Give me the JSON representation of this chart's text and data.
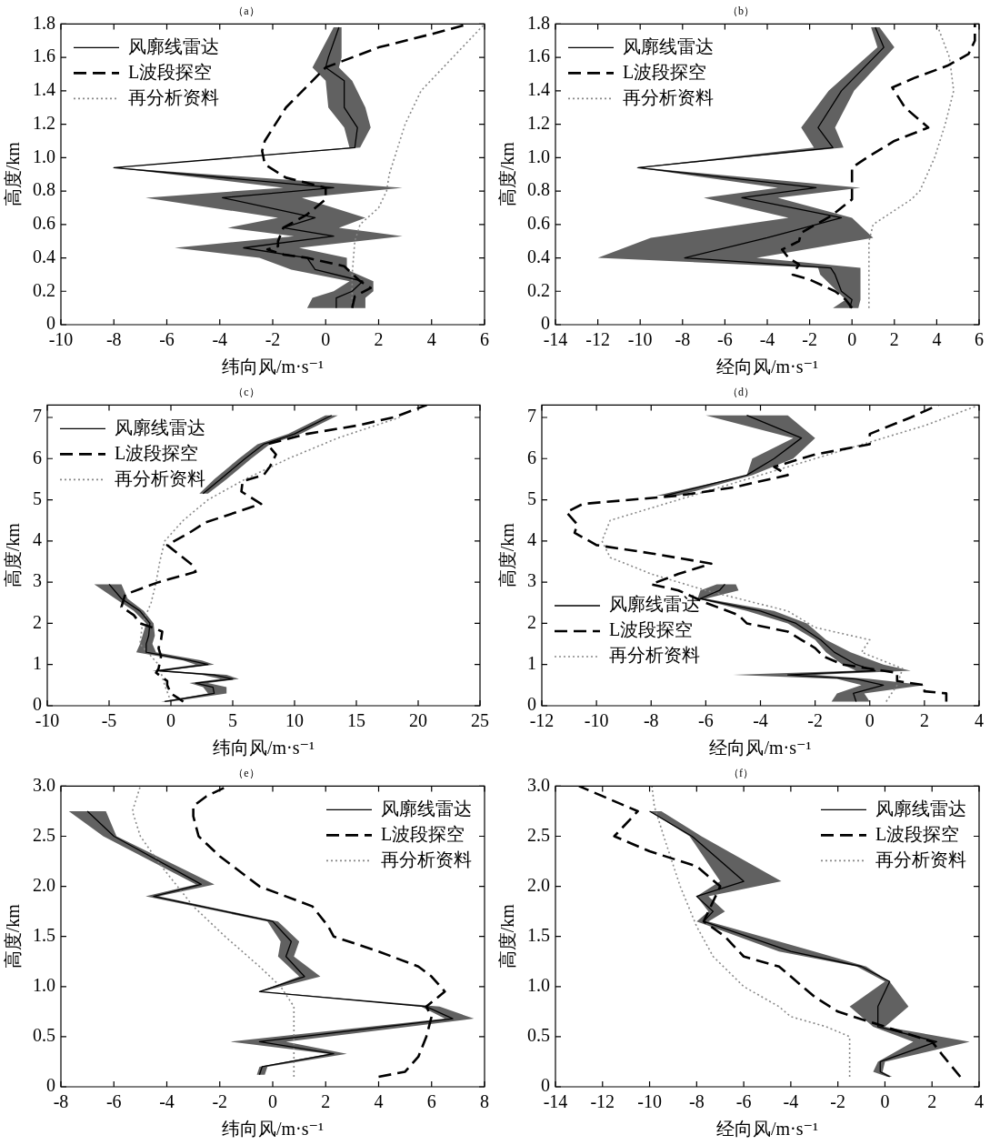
{
  "chart_data": [
    {
      "type": "line",
      "orientation": "horizontal",
      "title": "（a）",
      "xlabel": "纬向风/m·s⁻¹",
      "ylabel": "高度/km",
      "xlim": [
        -10,
        6
      ],
      "xticks": [
        -10,
        -8,
        -6,
        -4,
        -2,
        0,
        2,
        4,
        6
      ],
      "ylim": [
        0,
        1.8
      ],
      "yticks": [
        0,
        0.2,
        0.4,
        0.6,
        0.8,
        {
          "value": 1,
          "label": "1.0"
        },
        1.2,
        1.4,
        1.6,
        1.8
      ],
      "legend": "top left",
      "series": [
        {
          "name": "风廓线雷达",
          "color": "#000000",
          "line_style": "solid",
          "x": [
            0.1,
            0.16,
            0.2,
            0.26,
            0.33,
            0.4,
            0.46,
            0.53,
            0.58,
            0.64,
            0.76,
            0.82,
            0.94,
            1.06,
            1.18,
            1.3,
            1.46,
            1.54,
            1.6,
            1.78
          ],
          "values": [
            0.4,
            0.4,
            1.0,
            1.4,
            -0.4,
            -0.7,
            -3.1,
            0.3,
            -1.6,
            -0.4,
            -3.9,
            0.3,
            -8.0,
            1.1,
            1.2,
            0.7,
            0.7,
            0,
            0.1,
            0.5
          ],
          "lower": [
            -0.7,
            -0.5,
            0.3,
            0.9,
            -1.3,
            -2.5,
            -5.7,
            -1.2,
            -3.7,
            -1.8,
            -6.8,
            -1.6,
            -8.0,
            0.9,
            0.7,
            0.1,
            0.0,
            -0.5,
            -0.3,
            0.3
          ],
          "upper": [
            1.5,
            1.5,
            1.8,
            1.8,
            0.8,
            0.8,
            -1.0,
            2.9,
            0.5,
            1.5,
            -0.9,
            2.9,
            -8.0,
            1.3,
            1.7,
            1.5,
            1.0,
            0.5,
            0.6,
            0.6
          ]
        },
        {
          "name": "L波段探空",
          "color": "#000000",
          "line_style": "dashed",
          "x": [
            0.1,
            0.17,
            0.22,
            0.26,
            0.35,
            0.4,
            0.42,
            0.45,
            0.47,
            0.5,
            0.58,
            0.66,
            0.75,
            0.82,
            0.88,
            0.96,
            1.04,
            1.1,
            1.3,
            1.46,
            1.54,
            1.6,
            1.66,
            1.74,
            1.8
          ],
          "values": [
            1.0,
            1.1,
            1.7,
            1.3,
            0.7,
            -0.7,
            -1.6,
            -2.2,
            -1.8,
            -1.8,
            -1.6,
            -0.7,
            0,
            0,
            -1.5,
            -2.3,
            -2.4,
            -2.3,
            -1.5,
            -0.5,
            0,
            1.0,
            2.0,
            4.0,
            5.4
          ]
        },
        {
          "name": "再分析资料",
          "color": "#888888",
          "line_style": "dotted",
          "x": [
            0.1,
            0.3,
            0.5,
            0.6,
            0.7,
            0.8,
            0.9,
            1.0,
            1.2,
            1.4,
            1.6,
            1.8
          ],
          "values": [
            1.0,
            1.0,
            1.1,
            1.3,
            2.0,
            2.3,
            2.4,
            2.6,
            3.0,
            3.6,
            4.8,
            6.0
          ]
        }
      ]
    },
    {
      "type": "line",
      "orientation": "horizontal",
      "title": "（b）",
      "xlabel": "经向风/m·s⁻¹",
      "ylabel": "高度/km",
      "xlim": [
        -14,
        6
      ],
      "xticks": [
        -14,
        -12,
        -10,
        -8,
        -6,
        -4,
        -2,
        0,
        2,
        4,
        6
      ],
      "ylim": [
        0,
        1.8
      ],
      "yticks": [
        0,
        0.2,
        0.4,
        0.6,
        0.8,
        {
          "value": 1,
          "label": "1.0"
        },
        1.2,
        1.4,
        1.6,
        1.8
      ],
      "legend": "top left",
      "series": [
        {
          "name": "风廓线雷达",
          "color": "#000000",
          "line_style": "solid",
          "x": [
            0.1,
            0.15,
            0.2,
            0.3,
            0.34,
            0.4,
            0.52,
            0.64,
            0.76,
            0.82,
            0.94,
            1.06,
            1.18,
            1.4,
            1.66,
            1.78
          ],
          "values": [
            -0.1,
            0,
            -0.5,
            -0.8,
            -1.0,
            -7.9,
            -4.0,
            -0.5,
            -5.2,
            -1.7,
            -10.1,
            -0.9,
            -1.6,
            -0.5,
            1.5,
            1.1
          ],
          "lower": [
            -0.9,
            -0.3,
            -0.7,
            -1.5,
            -1.6,
            -12.0,
            -9.5,
            -3.0,
            -7.0,
            -3.5,
            -10.2,
            -1.8,
            -2.4,
            -1.1,
            1.2,
            0.9
          ],
          "upper": [
            0.3,
            0.4,
            0.4,
            0.4,
            0.4,
            -4.5,
            1.0,
            0.0,
            -3.5,
            0.4,
            -10.0,
            -0.4,
            -0.8,
            0.1,
            2.0,
            1.3
          ]
        },
        {
          "name": "L波段探空",
          "color": "#000000",
          "line_style": "dashed",
          "x": [
            0.1,
            0.15,
            0.2,
            0.27,
            0.3,
            0.36,
            0.4,
            0.45,
            0.5,
            0.55,
            0.65,
            0.75,
            0.78,
            0.94,
            1.0,
            1.1,
            1.18,
            1.3,
            1.42,
            1.48,
            1.55,
            1.62,
            1.7,
            1.8
          ],
          "values": [
            0,
            -0.3,
            -0.8,
            -2.0,
            -2.8,
            -2.5,
            -3.0,
            -3.3,
            -2.5,
            -2.4,
            -1.0,
            0,
            0,
            0,
            0.7,
            2.0,
            3.6,
            2.5,
            1.9,
            3.0,
            4.5,
            5.5,
            5.8,
            5.8
          ]
        },
        {
          "name": "再分析资料",
          "color": "#888888",
          "line_style": "dotted",
          "x": [
            0.1,
            0.3,
            0.5,
            0.6,
            0.7,
            0.75,
            0.8,
            1.0,
            1.2,
            1.4,
            1.6,
            1.7,
            1.8
          ],
          "values": [
            0.8,
            0.8,
            0.8,
            1.0,
            2.2,
            2.8,
            3.2,
            3.9,
            4.4,
            4.8,
            4.6,
            4.3,
            4.0
          ]
        }
      ]
    },
    {
      "type": "line",
      "orientation": "horizontal",
      "title": "（c）",
      "xlabel": "纬向风/m·s⁻¹",
      "ylabel": "高度/km",
      "xlim": [
        -10,
        25
      ],
      "xticks": [
        -10,
        -5,
        0,
        5,
        10,
        15,
        20,
        25
      ],
      "ylim": [
        0,
        7.3
      ],
      "yticks": [
        0,
        1,
        2,
        3,
        4,
        5,
        6,
        7
      ],
      "legend": "top left",
      "series": [
        {
          "name": "风廓线雷达",
          "color": "#000000",
          "line_style": "solid",
          "x": [
            0.1,
            0.3,
            0.45,
            0.55,
            0.65,
            0.75,
            0.85,
            1.0,
            1.1,
            1.3,
            1.5,
            1.7,
            2.0,
            2.3,
            2.6,
            2.95,
            4.0,
            5.15,
            5.5,
            6.0,
            6.35,
            6.6,
            7.05
          ],
          "values": [
            -0.5,
            3.5,
            3.4,
            2.0,
            5.0,
            3.5,
            -1.0,
            3.0,
            1.5,
            -2.0,
            -2.0,
            -1.8,
            -1.7,
            -2.5,
            -4.0,
            -5.0,
            null,
            2.6,
            4.0,
            6.0,
            7.5,
            10.0,
            13.0
          ],
          "lower": [
            -0.8,
            3.0,
            2.6,
            1.5,
            4.0,
            2.5,
            -1.5,
            2.0,
            1.0,
            -2.8,
            -2.5,
            -2.3,
            -2.0,
            -3.0,
            -4.5,
            -6.2,
            null,
            2.3,
            3.5,
            5.5,
            7.0,
            9.5,
            12.5
          ],
          "upper": [
            0,
            4.5,
            4.5,
            3.0,
            5.5,
            4.5,
            -0.5,
            3.5,
            2.5,
            -1.2,
            -1.5,
            -1.3,
            -1.4,
            -2.2,
            -3.5,
            -4.0,
            null,
            3.0,
            4.5,
            6.5,
            8.0,
            10.5,
            13.5
          ]
        },
        {
          "name": "L波段探空",
          "color": "#000000",
          "line_style": "dashed",
          "x": [
            0.1,
            0.2,
            0.3,
            0.5,
            0.6,
            0.8,
            0.9,
            1.2,
            1.4,
            1.6,
            1.8,
            1.9,
            2.0,
            2.2,
            2.4,
            2.7,
            3.0,
            3.25,
            3.4,
            3.9,
            4.2,
            4.45,
            4.9,
            5.2,
            5.45,
            5.6,
            5.8,
            6.1,
            6.35,
            6.6,
            6.8,
            7.0,
            7.3
          ],
          "values": [
            1.0,
            0.5,
            0,
            -0.3,
            -0.3,
            -1.2,
            -1.0,
            -0.8,
            -1.0,
            -0.8,
            -0.7,
            -1.5,
            -2.5,
            -3.0,
            -4.0,
            -3.7,
            -1.0,
            2.0,
            1.8,
            -0.3,
            1.5,
            2.8,
            7.3,
            5.7,
            5.8,
            7.5,
            8.0,
            8.5,
            7.8,
            11,
            15,
            18,
            20.7
          ]
        },
        {
          "name": "再分析资料",
          "color": "#888888",
          "line_style": "dotted",
          "x": [
            0.1,
            0.5,
            1.0,
            1.5,
            2.0,
            2.5,
            3.0,
            3.5,
            4.0,
            4.5,
            5.0,
            5.5,
            6.0,
            6.5,
            7.0
          ],
          "values": [
            0,
            -0.5,
            -1.0,
            -2.5,
            -2.3,
            -1.6,
            -1.2,
            -0.9,
            -0.5,
            1.0,
            3.0,
            6.0,
            9.5,
            13.5,
            18.5
          ]
        }
      ]
    },
    {
      "type": "line",
      "orientation": "horizontal",
      "title": "（d）",
      "xlabel": "经向风/m·s⁻¹",
      "ylabel": "高度/km",
      "xlim": [
        -12,
        4
      ],
      "xticks": [
        -12,
        -10,
        -8,
        -6,
        -4,
        -2,
        0,
        2,
        4
      ],
      "ylim": [
        0,
        7.3
      ],
      "yticks": [
        0,
        1,
        2,
        3,
        4,
        5,
        6,
        7
      ],
      "legend": "bottom left",
      "series": [
        {
          "name": "风廓线雷达",
          "color": "#000000",
          "line_style": "solid",
          "x": [
            0.1,
            0.3,
            0.5,
            0.65,
            0.75,
            0.85,
            1.0,
            1.3,
            1.6,
            2.0,
            2.3,
            2.6,
            2.8,
            2.95,
            4.0,
            5.1,
            5.6,
            6.0,
            6.5,
            7.05
          ],
          "values": [
            -0.5,
            -0.6,
            0.5,
            -0.5,
            -3.0,
            0.2,
            -0.5,
            -1.3,
            -1.8,
            -2.7,
            -4.0,
            -6.2,
            -5.5,
            -5.3,
            null,
            -7.5,
            -4.5,
            -3.5,
            -2.5,
            -4.5
          ],
          "lower": [
            -1.4,
            -1.2,
            -0.3,
            -1.2,
            -5.0,
            -0.5,
            -1.0,
            -1.6,
            -2.0,
            -3.0,
            -4.5,
            -6.3,
            -6.2,
            -5.6,
            null,
            -7.8,
            -4.5,
            -4.3,
            -2.8,
            -6.0
          ],
          "upper": [
            0.0,
            -0.2,
            2.0,
            0.0,
            -2.0,
            1.5,
            0.5,
            -0.7,
            -1.6,
            -2.3,
            -3.5,
            -6.0,
            -4.8,
            -4.9,
            null,
            -7.0,
            -4.3,
            -2.8,
            -2.0,
            -3.0
          ]
        },
        {
          "name": "L波段探空",
          "color": "#000000",
          "line_style": "dashed",
          "x": [
            0.1,
            0.3,
            0.35,
            0.5,
            0.6,
            0.8,
            0.9,
            1.0,
            1.2,
            1.4,
            1.6,
            1.8,
            2.0,
            2.2,
            2.5,
            2.8,
            2.95,
            3.2,
            3.45,
            3.7,
            3.9,
            4.2,
            4.4,
            4.7,
            4.9,
            5.1,
            5.3,
            5.6,
            5.8,
            6.1,
            6.35,
            6.6,
            7.0,
            7.3
          ],
          "values": [
            2.8,
            2.8,
            2.0,
            2.0,
            1.0,
            1.0,
            0,
            -1.0,
            -1.7,
            -2.0,
            -2.5,
            -3.0,
            -4.5,
            -4.8,
            -6.0,
            -7.0,
            -8.0,
            -7.0,
            -5.8,
            -8.0,
            -10.0,
            -10.8,
            -10.7,
            -11.1,
            -10.5,
            -7.0,
            -5.0,
            -3.0,
            -3.5,
            -2.0,
            0.0,
            0.0,
            1.5,
            2.5
          ]
        },
        {
          "name": "再分析资料",
          "color": "#888888",
          "line_style": "dotted",
          "x": [
            0.1,
            0.5,
            0.9,
            1.3,
            1.6,
            1.9,
            2.3,
            2.8,
            3.2,
            3.6,
            4.0,
            4.5,
            4.9,
            5.2,
            5.6,
            6.0,
            6.4,
            6.8,
            7.3
          ],
          "values": [
            0.6,
            1.0,
            1.2,
            -0.3,
            0.0,
            -2.0,
            -3.0,
            -6.0,
            -8.0,
            -9.5,
            -9.8,
            -9.5,
            -7.5,
            -6.0,
            -4.0,
            -2.0,
            0.0,
            2.0,
            4.0
          ]
        }
      ]
    },
    {
      "type": "line",
      "orientation": "horizontal",
      "title": "（e）",
      "xlabel": "纬向风/m·s⁻¹",
      "ylabel": "高度/km",
      "xlim": [
        -8,
        8
      ],
      "xticks": [
        -8,
        -6,
        -4,
        -2,
        0,
        2,
        4,
        6,
        8
      ],
      "ylim": [
        0,
        3
      ],
      "yticks": [
        0,
        0.5,
        {
          "value": 1,
          "label": "1.0"
        },
        1.5,
        {
          "value": 2,
          "label": "2.0"
        },
        2.5,
        {
          "value": 3,
          "label": "3.0"
        }
      ],
      "legend": "top right",
      "series": [
        {
          "name": "风廓线雷达",
          "color": "#000000",
          "line_style": "solid",
          "x": [
            0.12,
            0.2,
            0.33,
            0.45,
            0.68,
            0.8,
            0.95,
            1.1,
            1.3,
            1.45,
            1.65,
            1.9,
            2.02,
            2.5,
            2.75
          ],
          "values": [
            -0.5,
            -0.4,
            2.3,
            -0.5,
            6.8,
            5.8,
            -0.5,
            1.2,
            0.5,
            0.7,
            0.0,
            -4.5,
            -2.7,
            -6.0,
            -7.0
          ],
          "lower": [
            -0.6,
            -0.5,
            2.1,
            -1.6,
            6.5,
            5.6,
            -0.5,
            1.0,
            0.2,
            0.3,
            -0.2,
            -4.8,
            -2.9,
            -6.4,
            -7.7
          ],
          "upper": [
            -0.3,
            -0.2,
            2.8,
            0.5,
            7.6,
            6.3,
            -0.4,
            1.8,
            0.8,
            1.0,
            0.2,
            -4.3,
            -2.2,
            -5.9,
            -6.3
          ]
        },
        {
          "name": "L波段探空",
          "color": "#000000",
          "line_style": "dashed",
          "x": [
            0.1,
            0.15,
            0.3,
            0.5,
            0.7,
            0.8,
            0.95,
            1.1,
            1.2,
            1.35,
            1.5,
            1.6,
            1.8,
            2.0,
            2.3,
            2.5,
            2.7,
            2.8,
            2.9,
            3.0
          ],
          "values": [
            4.0,
            5.0,
            5.5,
            5.8,
            6.0,
            5.8,
            6.5,
            6.0,
            5.5,
            4.0,
            2.3,
            2.1,
            1.5,
            -0.5,
            -2.0,
            -2.8,
            -3.0,
            -3.0,
            -2.5,
            -1.7
          ]
        },
        {
          "name": "再分析资料",
          "color": "#888888",
          "line_style": "dotted",
          "x": [
            0.1,
            0.5,
            0.8,
            1.0,
            1.2,
            1.5,
            1.8,
            2.2,
            2.5,
            2.75,
            3.0
          ],
          "values": [
            0.8,
            0.8,
            0.8,
            0.3,
            -0.5,
            -1.8,
            -3.0,
            -4.2,
            -5.0,
            -5.3,
            -5.0
          ]
        }
      ]
    },
    {
      "type": "line",
      "orientation": "horizontal",
      "title": "（f）",
      "xlabel": "经向风/m·s⁻¹",
      "ylabel": "高度/km",
      "xlim": [
        -14,
        4
      ],
      "xticks": [
        -14,
        -12,
        -10,
        -8,
        -6,
        -4,
        -2,
        0,
        2,
        4
      ],
      "ylim": [
        0,
        3
      ],
      "yticks": [
        0,
        0.5,
        {
          "value": 1,
          "label": "1.0"
        },
        1.5,
        {
          "value": 2,
          "label": "2.0"
        },
        2.5,
        {
          "value": 3,
          "label": "3.0"
        }
      ],
      "legend": "top right",
      "series": [
        {
          "name": "风廓线雷达",
          "color": "#000000",
          "line_style": "solid",
          "x": [
            0.1,
            0.15,
            0.25,
            0.45,
            0.6,
            0.8,
            1.05,
            1.2,
            1.35,
            1.65,
            1.75,
            1.9,
            2.05,
            2.5,
            2.75
          ],
          "values": [
            0.2,
            -0.2,
            -0.2,
            2.2,
            -0.3,
            -0.3,
            0.2,
            -1.0,
            -4.0,
            -7.7,
            -7.3,
            -8.0,
            -6.0,
            -8.2,
            -10.0
          ],
          "lower": [
            0.1,
            -0.5,
            -0.3,
            1.2,
            -0.5,
            -1.5,
            0.0,
            -1.2,
            -4.5,
            -8.0,
            -7.5,
            -8.0,
            -7.0,
            -8.3,
            -10.0
          ],
          "upper": [
            0.3,
            -0.1,
            0.0,
            3.6,
            0.0,
            1.0,
            0.2,
            -0.8,
            -3.0,
            -7.5,
            -6.8,
            -7.5,
            -4.4,
            -7.8,
            -9.5
          ]
        },
        {
          "name": "L波段探空",
          "color": "#000000",
          "line_style": "dashed",
          "x": [
            0.1,
            0.3,
            0.45,
            0.6,
            0.75,
            0.9,
            1.2,
            1.3,
            1.5,
            1.65,
            2.0,
            2.2,
            2.35,
            2.5,
            2.75,
            2.9,
            3.0
          ],
          "values": [
            3.2,
            2.5,
            2.0,
            0.0,
            -2.0,
            -3.0,
            -4.5,
            -6.0,
            -6.8,
            -7.7,
            -7.0,
            -8.0,
            -10.0,
            -11.5,
            -10.5,
            -12.0,
            -13.0
          ]
        },
        {
          "name": "再分析资料",
          "color": "#888888",
          "line_style": "dotted",
          "x": [
            0.1,
            0.5,
            0.6,
            0.7,
            0.8,
            1.0,
            1.3,
            1.6,
            2.0,
            2.5,
            2.8,
            3.0
          ],
          "values": [
            -1.5,
            -1.5,
            -2.5,
            -4.0,
            -4.5,
            -6.0,
            -7.3,
            -8.0,
            -8.7,
            -9.4,
            -9.8,
            -9.9
          ]
        }
      ]
    }
  ]
}
